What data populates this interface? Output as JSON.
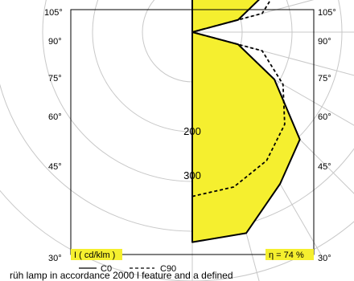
{
  "chart_data": {
    "type": "polar",
    "title": "",
    "unit_label": "I ( cd/klm )",
    "efficiency": "η = 74 %",
    "angle_ticks": [
      "105°",
      "90°",
      "75°",
      "60°",
      "45°",
      "30°"
    ],
    "radial_ticks": [
      200,
      300
    ],
    "radial_max": 450,
    "grid": true,
    "highlight_color": "#f5ef2f",
    "series": [
      {
        "name": "C0",
        "style": "solid",
        "angles_deg": [
          0,
          15,
          30,
          45,
          60,
          75,
          90,
          105,
          120,
          135,
          150,
          165,
          180
        ],
        "values_cd_per_klm": [
          422,
          418,
          352,
          305,
          190,
          95,
          0,
          95,
          190,
          210,
          200,
          205,
          208
        ]
      },
      {
        "name": "C90",
        "style": "dashed",
        "angles_deg": [
          0,
          15,
          30,
          45,
          60,
          75,
          90,
          105,
          120,
          135,
          150,
          165,
          180
        ],
        "values_cd_per_klm": [
          330,
          322,
          298,
          262,
          210,
          145,
          0,
          145,
          210,
          262,
          298,
          322,
          330
        ]
      }
    ]
  },
  "legend": {
    "items": [
      {
        "label": "C0",
        "style": "solid"
      },
      {
        "label": "C90",
        "style": "dashed"
      }
    ]
  },
  "footer_text": "rüh lamp in accordance 2000 l feature and a defined"
}
